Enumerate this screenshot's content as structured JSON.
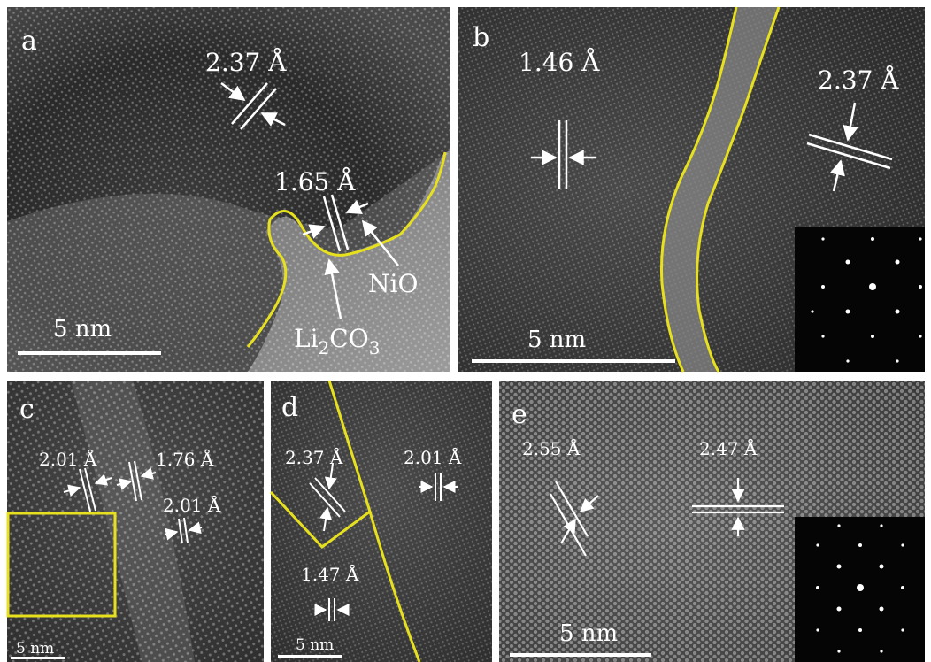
{
  "colors": {
    "boundary": "#e6e01e",
    "text": "#ffffff",
    "background": "#ffffff"
  },
  "panels": [
    {
      "letter": "a",
      "measurements": [
        "2.37 Å",
        "1.65 Å"
      ],
      "phase_labels": [
        "NiO",
        "Li",
        "2",
        "CO",
        "3"
      ],
      "scale_bar": "5 nm"
    },
    {
      "letter": "b",
      "measurements": [
        "1.46 Å",
        "2.37 Å"
      ],
      "scale_bar": "5 nm",
      "inset": "diffraction-pattern"
    },
    {
      "letter": "c",
      "measurements": [
        "2.01 Å",
        "1.76 Å",
        "2.01 Å"
      ],
      "scale_bar": "5 nm"
    },
    {
      "letter": "d",
      "measurements": [
        "2.37 Å",
        "2.01 Å",
        "1.47 Å"
      ],
      "scale_bar": "5 nm"
    },
    {
      "letter": "e",
      "measurements": [
        "2.55 Å",
        "2.47 Å"
      ],
      "scale_bar": "5 nm",
      "inset": "diffraction-pattern"
    }
  ]
}
